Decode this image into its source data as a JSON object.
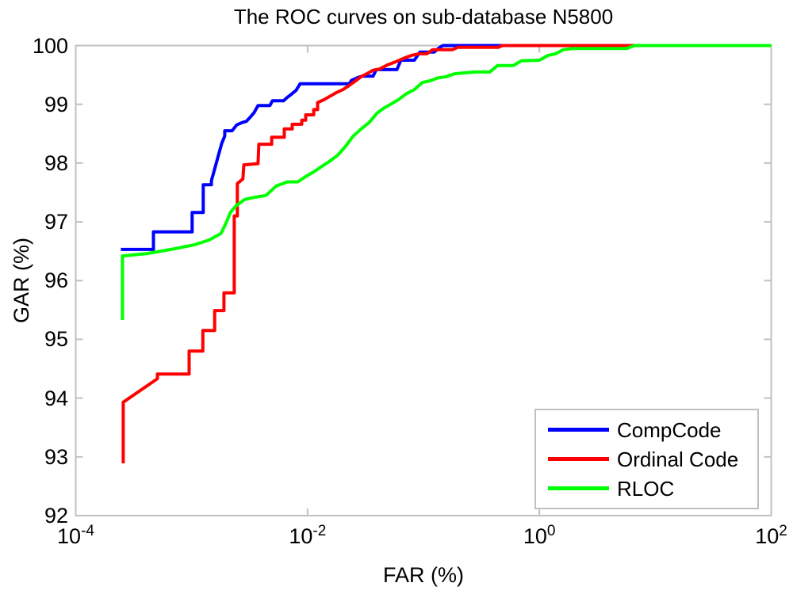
{
  "title": "The ROC curves on sub-database N5800",
  "chart_data": {
    "type": "line",
    "title": "The ROC curves on sub-database N5800",
    "xlabel": "FAR (%)",
    "ylabel": "GAR (%)",
    "x_scale": "log10",
    "xlim": [
      0.0001,
      100
    ],
    "ylim": [
      92,
      100
    ],
    "grid": false,
    "axis_color": "#c0c0c0",
    "x_ticks": [
      {
        "value": 0.0001,
        "base": "10",
        "exp": "-4"
      },
      {
        "value": 0.01,
        "base": "10",
        "exp": "-2"
      },
      {
        "value": 1,
        "base": "10",
        "exp": "0"
      },
      {
        "value": 100,
        "base": "10",
        "exp": "2"
      }
    ],
    "y_ticks": [
      100,
      99,
      98,
      97,
      96,
      95,
      94,
      93,
      92
    ],
    "legend": {
      "position": "bottom-right"
    },
    "series": [
      {
        "name": "CompCode",
        "color": "#0000ff",
        "points": [
          [
            0.000245,
            96.53
          ],
          [
            0.000468,
            96.53
          ],
          [
            0.000468,
            96.83
          ],
          [
            0.00101,
            96.83
          ],
          [
            0.00101,
            97.16
          ],
          [
            0.00126,
            97.16
          ],
          [
            0.00126,
            97.63
          ],
          [
            0.00148,
            97.63
          ],
          [
            0.00148,
            97.7
          ],
          [
            0.00158,
            97.9
          ],
          [
            0.0017,
            98.13
          ],
          [
            0.00182,
            98.34
          ],
          [
            0.00193,
            98.46
          ],
          [
            0.00193,
            98.55
          ],
          [
            0.00223,
            98.55
          ],
          [
            0.00245,
            98.65
          ],
          [
            0.00273,
            98.69
          ],
          [
            0.00296,
            98.71
          ],
          [
            0.0032,
            98.78
          ],
          [
            0.00346,
            98.86
          ],
          [
            0.00374,
            98.98
          ],
          [
            0.00474,
            98.98
          ],
          [
            0.00497,
            99.06
          ],
          [
            0.0062,
            99.06
          ],
          [
            0.00671,
            99.12
          ],
          [
            0.00714,
            99.16
          ],
          [
            0.00798,
            99.24
          ],
          [
            0.00863,
            99.35
          ],
          [
            0.0229,
            99.35
          ],
          [
            0.024,
            99.41
          ],
          [
            0.0268,
            99.45
          ],
          [
            0.0295,
            99.48
          ],
          [
            0.0368,
            99.48
          ],
          [
            0.0391,
            99.59
          ],
          [
            0.059,
            99.59
          ],
          [
            0.0638,
            99.75
          ],
          [
            0.0834,
            99.75
          ],
          [
            0.0931,
            99.89
          ],
          [
            0.124,
            99.89
          ],
          [
            0.134,
            99.95
          ],
          [
            0.147,
            100
          ],
          [
            0.579,
            100
          ]
        ]
      },
      {
        "name": "Ordinal Code",
        "color": "#ff0000",
        "points": [
          [
            0.000257,
            92.89
          ],
          [
            0.000257,
            93.93
          ],
          [
            0.000507,
            94.33
          ],
          [
            0.000507,
            94.41
          ],
          [
            0.000952,
            94.41
          ],
          [
            0.000952,
            94.8
          ],
          [
            0.00125,
            94.8
          ],
          [
            0.00125,
            95.15
          ],
          [
            0.00158,
            95.15
          ],
          [
            0.00158,
            95.49
          ],
          [
            0.0019,
            95.49
          ],
          [
            0.0019,
            95.79
          ],
          [
            0.00233,
            95.79
          ],
          [
            0.00233,
            97.1
          ],
          [
            0.00248,
            97.1
          ],
          [
            0.00248,
            97.65
          ],
          [
            0.00277,
            97.73
          ],
          [
            0.00282,
            97.97
          ],
          [
            0.00374,
            97.99
          ],
          [
            0.0038,
            98.32
          ],
          [
            0.0049,
            98.32
          ],
          [
            0.0049,
            98.44
          ],
          [
            0.0063,
            98.44
          ],
          [
            0.0063,
            98.58
          ],
          [
            0.00737,
            98.58
          ],
          [
            0.00737,
            98.66
          ],
          [
            0.00891,
            98.66
          ],
          [
            0.00891,
            98.73
          ],
          [
            0.00964,
            98.73
          ],
          [
            0.00964,
            98.82
          ],
          [
            0.0113,
            98.82
          ],
          [
            0.0113,
            98.91
          ],
          [
            0.0122,
            98.91
          ],
          [
            0.0122,
            99.03
          ],
          [
            0.0139,
            99.08
          ],
          [
            0.0157,
            99.14
          ],
          [
            0.0178,
            99.2
          ],
          [
            0.0202,
            99.25
          ],
          [
            0.0229,
            99.32
          ],
          [
            0.0256,
            99.39
          ],
          [
            0.029,
            99.47
          ],
          [
            0.0324,
            99.52
          ],
          [
            0.0368,
            99.58
          ],
          [
            0.0417,
            99.6
          ],
          [
            0.0488,
            99.67
          ],
          [
            0.0571,
            99.72
          ],
          [
            0.0669,
            99.78
          ],
          [
            0.0783,
            99.83
          ],
          [
            0.0916,
            99.86
          ],
          [
            0.107,
            99.86
          ],
          [
            0.12,
            99.93
          ],
          [
            0.178,
            99.93
          ],
          [
            0.198,
            99.97
          ],
          [
            0.443,
            99.97
          ],
          [
            0.479,
            100
          ],
          [
            7.19,
            100
          ]
        ]
      },
      {
        "name": "RLOC",
        "color": "#00ff00",
        "points": [
          [
            0.000253,
            95.33
          ],
          [
            0.000253,
            96.42
          ],
          [
            0.000413,
            96.46
          ],
          [
            0.000663,
            96.53
          ],
          [
            0.00106,
            96.61
          ],
          [
            0.00141,
            96.69
          ],
          [
            0.00179,
            96.8
          ],
          [
            0.00196,
            96.96
          ],
          [
            0.00216,
            97.16
          ],
          [
            0.00241,
            97.27
          ],
          [
            0.00286,
            97.38
          ],
          [
            0.00335,
            97.41
          ],
          [
            0.00438,
            97.45
          ],
          [
            0.00538,
            97.61
          ],
          [
            0.00671,
            97.68
          ],
          [
            0.00823,
            97.68
          ],
          [
            0.00964,
            97.77
          ],
          [
            0.0113,
            97.85
          ],
          [
            0.0132,
            97.94
          ],
          [
            0.0155,
            98.03
          ],
          [
            0.0181,
            98.13
          ],
          [
            0.0212,
            98.28
          ],
          [
            0.0248,
            98.46
          ],
          [
            0.029,
            98.58
          ],
          [
            0.034,
            98.69
          ],
          [
            0.0398,
            98.85
          ],
          [
            0.0452,
            98.93
          ],
          [
            0.052,
            99.0
          ],
          [
            0.0609,
            99.08
          ],
          [
            0.0713,
            99.18
          ],
          [
            0.0834,
            99.25
          ],
          [
            0.0977,
            99.37
          ],
          [
            0.114,
            99.4
          ],
          [
            0.134,
            99.45
          ],
          [
            0.157,
            99.47
          ],
          [
            0.186,
            99.52
          ],
          [
            0.276,
            99.55
          ],
          [
            0.373,
            99.55
          ],
          [
            0.436,
            99.66
          ],
          [
            0.597,
            99.66
          ],
          [
            0.699,
            99.74
          ],
          [
            1.0,
            99.75
          ],
          [
            1.18,
            99.83
          ],
          [
            1.38,
            99.86
          ],
          [
            1.61,
            99.93
          ],
          [
            1.95,
            99.95
          ],
          [
            5.67,
            99.95
          ],
          [
            6.64,
            100
          ],
          [
            7.42,
            100
          ],
          [
            100,
            100
          ]
        ]
      }
    ]
  }
}
